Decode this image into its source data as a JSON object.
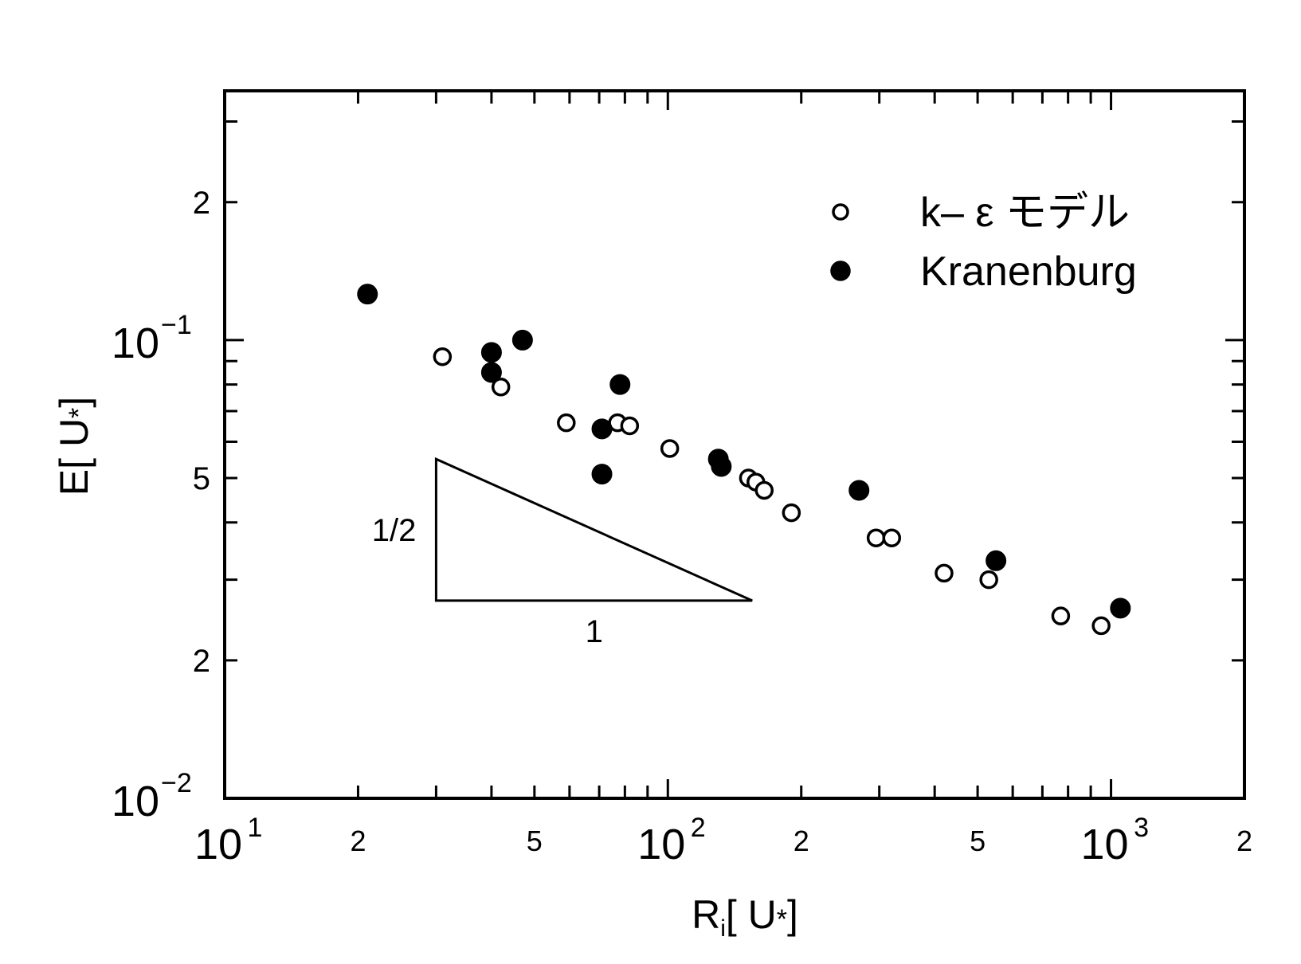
{
  "chart_data": {
    "type": "scatter",
    "x_scale": "log",
    "y_scale": "log",
    "xlim": [
      10,
      2000
    ],
    "ylim": [
      0.01,
      0.35
    ],
    "xlabel": {
      "main": "R",
      "sub": "i",
      "rest": "[ U",
      "star": "*",
      "close": "]"
    },
    "ylabel": {
      "main": "E[ U",
      "star": "*",
      "close": "]"
    },
    "x_ticks": [
      {
        "value": 10,
        "base": "10",
        "exp": "1"
      },
      {
        "value": 20,
        "label": "2"
      },
      {
        "value": 50,
        "label": "5"
      },
      {
        "value": 100,
        "base": "10",
        "exp": "2"
      },
      {
        "value": 200,
        "label": "2"
      },
      {
        "value": 500,
        "label": "5"
      },
      {
        "value": 1000,
        "base": "10",
        "exp": "3"
      },
      {
        "value": 2000,
        "label": "2"
      }
    ],
    "y_ticks": [
      {
        "value": 0.01,
        "base": "10",
        "exp": "−2"
      },
      {
        "value": 0.02,
        "label": "2"
      },
      {
        "value": 0.05,
        "label": "5"
      },
      {
        "value": 0.1,
        "base": "10",
        "exp": "−1"
      },
      {
        "value": 0.2,
        "label": "2"
      }
    ],
    "series": [
      {
        "name": "k– ε モデル",
        "marker": "open-circle",
        "points": [
          [
            31,
            0.092
          ],
          [
            42,
            0.079
          ],
          [
            59,
            0.066
          ],
          [
            77,
            0.066
          ],
          [
            82,
            0.065
          ],
          [
            101,
            0.058
          ],
          [
            152,
            0.05
          ],
          [
            158,
            0.049
          ],
          [
            165,
            0.047
          ],
          [
            190,
            0.042
          ],
          [
            295,
            0.037
          ],
          [
            320,
            0.037
          ],
          [
            420,
            0.031
          ],
          [
            530,
            0.03
          ],
          [
            770,
            0.025
          ],
          [
            950,
            0.0238
          ]
        ]
      },
      {
        "name": "Kranenburg",
        "marker": "filled-circle",
        "points": [
          [
            21,
            0.126
          ],
          [
            40,
            0.094
          ],
          [
            40,
            0.085
          ],
          [
            47,
            0.1
          ],
          [
            71,
            0.064
          ],
          [
            78,
            0.08
          ],
          [
            71,
            0.051
          ],
          [
            130,
            0.055
          ],
          [
            132,
            0.053
          ],
          [
            270,
            0.047
          ],
          [
            550,
            0.033
          ],
          [
            1050,
            0.026
          ]
        ]
      }
    ],
    "legend": {
      "position": "top-right"
    },
    "slope_triangle": {
      "vertical_label": "1/2",
      "horizontal_label": "1",
      "corner": [
        30,
        0.027
      ],
      "run_to_x": 155,
      "rise_to_y": 0.055
    }
  }
}
